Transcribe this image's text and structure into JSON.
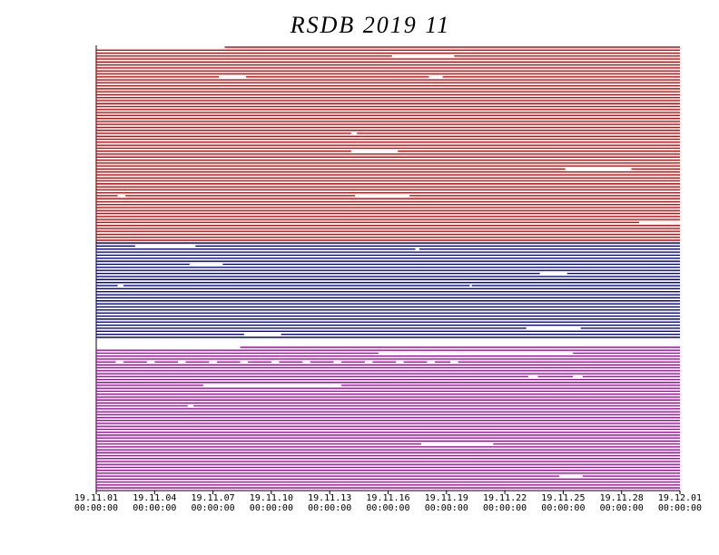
{
  "chart_data": {
    "type": "timeline",
    "title": "RSDB  2019  11",
    "xlim": [
      0,
      30
    ],
    "xticks": [
      {
        "value": 0,
        "label": "19.11.01 00:00:00"
      },
      {
        "value": 3,
        "label": "19.11.04 00:00:00"
      },
      {
        "value": 6,
        "label": "19.11.07 00:00:00"
      },
      {
        "value": 9,
        "label": "19.11.10 00:00:00"
      },
      {
        "value": 12,
        "label": "19.11.13 00:00:00"
      },
      {
        "value": 15,
        "label": "19.11.16 00:00:00"
      },
      {
        "value": 18,
        "label": "19.11.19 00:00:00"
      },
      {
        "value": 21,
        "label": "19.11.22 00:00:00"
      },
      {
        "value": 24,
        "label": "19.11.25 00:00:00"
      },
      {
        "value": 27,
        "label": "19.11.28 00:00:00"
      },
      {
        "value": 30,
        "label": "19.12.01 00:00:00"
      }
    ],
    "series": [
      {
        "color": "#e00000",
        "rows": [
          [
            [
              6.6,
              30
            ]
          ],
          [
            [
              0,
              30
            ]
          ],
          [
            [
              0,
              30
            ]
          ],
          [
            [
              0,
              15.2
            ],
            [
              18.4,
              30
            ]
          ],
          [
            [
              0,
              30
            ]
          ],
          [
            [
              0,
              30
            ]
          ],
          [
            [
              0,
              30
            ]
          ],
          [
            [
              0,
              30
            ]
          ],
          [
            [
              0,
              30
            ]
          ],
          [
            [
              0,
              30
            ]
          ],
          [
            [
              0,
              6.3
            ],
            [
              7.7,
              17.1
            ],
            [
              17.8,
              30
            ]
          ],
          [
            [
              0,
              30
            ]
          ],
          [
            [
              0,
              30
            ]
          ],
          [
            [
              0,
              30
            ]
          ],
          [
            [
              0,
              30
            ]
          ],
          [
            [
              0,
              30
            ]
          ],
          [
            [
              0,
              30
            ]
          ],
          [
            [
              0,
              30
            ]
          ],
          [
            [
              0,
              30
            ]
          ],
          [
            [
              0,
              30
            ]
          ],
          [
            [
              0,
              30
            ]
          ],
          [
            [
              0,
              30
            ]
          ],
          [
            [
              0,
              30
            ]
          ],
          [
            [
              0,
              30
            ]
          ],
          [
            [
              0,
              30
            ]
          ],
          [
            [
              0,
              30
            ]
          ],
          [
            [
              0,
              30
            ]
          ],
          [
            [
              0,
              30
            ]
          ],
          [
            [
              0,
              30
            ]
          ],
          [
            [
              0,
              13.1
            ],
            [
              13.4,
              30
            ]
          ],
          [
            [
              0,
              30
            ]
          ],
          [
            [
              0,
              30
            ]
          ],
          [
            [
              0,
              30
            ]
          ],
          [
            [
              0,
              30
            ]
          ],
          [
            [
              0,
              30
            ]
          ],
          [
            [
              0,
              13.1
            ],
            [
              15.5,
              30
            ]
          ],
          [
            [
              0,
              30
            ]
          ],
          [
            [
              0,
              30
            ]
          ],
          [
            [
              0,
              30
            ]
          ],
          [
            [
              0,
              30
            ]
          ],
          [
            [
              0,
              30
            ]
          ],
          [
            [
              0,
              24.1
            ],
            [
              27.5,
              30
            ]
          ],
          [
            [
              0,
              30
            ]
          ],
          [
            [
              0,
              30
            ]
          ],
          [
            [
              0,
              30
            ]
          ],
          [
            [
              0,
              30
            ]
          ],
          [
            [
              0,
              30
            ]
          ],
          [
            [
              0,
              30
            ]
          ],
          [
            [
              0,
              30
            ]
          ],
          [
            [
              0,
              30
            ]
          ],
          [
            [
              0,
              1.1
            ],
            [
              1.5,
              13.3
            ],
            [
              16.1,
              30
            ]
          ],
          [
            [
              0,
              30
            ]
          ],
          [
            [
              0,
              30
            ]
          ],
          [
            [
              0,
              30
            ]
          ],
          [
            [
              0,
              30
            ]
          ],
          [
            [
              0,
              30
            ]
          ],
          [
            [
              0,
              30
            ]
          ],
          [
            [
              0,
              30
            ]
          ],
          [
            [
              0,
              30
            ]
          ],
          [
            [
              0,
              27.9
            ]
          ],
          [
            [
              0,
              30
            ]
          ],
          [
            [
              0,
              30
            ]
          ],
          [
            [
              0,
              30
            ]
          ],
          [
            [
              0,
              30
            ]
          ],
          [
            [
              0,
              30
            ]
          ],
          [
            [
              0,
              30
            ]
          ]
        ]
      },
      {
        "color": "#0000b0",
        "rows": [
          [
            [
              0,
              30
            ]
          ],
          [
            [
              0,
              2
            ],
            [
              5.1,
              30
            ]
          ],
          [
            [
              0,
              16.4
            ],
            [
              16.6,
              30
            ]
          ],
          [
            [
              0,
              30
            ]
          ],
          [
            [
              0,
              30
            ]
          ],
          [
            [
              0,
              30
            ]
          ],
          [
            [
              0,
              30
            ]
          ],
          [
            [
              0,
              4.8
            ],
            [
              6.5,
              30
            ]
          ],
          [
            [
              0,
              30
            ]
          ],
          [
            [
              0,
              30
            ]
          ],
          [
            [
              0,
              22.8
            ],
            [
              24.2,
              30
            ]
          ],
          [
            [
              0,
              30
            ]
          ],
          [
            [
              0,
              30
            ]
          ],
          [
            [
              0,
              30
            ]
          ],
          [
            [
              0,
              1.1
            ],
            [
              1.4,
              19.2
            ],
            [
              19.3,
              30
            ]
          ],
          [
            [
              0,
              30
            ]
          ],
          [
            [
              0,
              30
            ]
          ],
          [
            [
              0,
              30
            ]
          ],
          [
            [
              0,
              30
            ]
          ],
          [
            [
              0,
              30
            ]
          ],
          [
            [
              0,
              30
            ]
          ],
          [
            [
              0,
              30
            ]
          ],
          [
            [
              0,
              30
            ]
          ],
          [
            [
              0,
              30
            ]
          ],
          [
            [
              0,
              30
            ]
          ],
          [
            [
              0,
              30
            ]
          ],
          [
            [
              0,
              30
            ]
          ],
          [
            [
              0,
              30
            ]
          ],
          [
            [
              0,
              22.1
            ],
            [
              24.9,
              30
            ]
          ],
          [
            [
              0,
              30
            ]
          ],
          [
            [
              0,
              7.6
            ],
            [
              9.5,
              30
            ]
          ],
          [
            [
              0,
              30
            ]
          ]
        ]
      },
      {
        "color": "#b000b0",
        "rows": [
          [
            [
              7.4,
              30
            ]
          ],
          [
            [
              0,
              30
            ]
          ],
          [
            [
              0,
              14.5
            ],
            [
              24.5,
              30
            ]
          ],
          [
            [
              0,
              30
            ]
          ],
          [
            [
              0,
              30
            ]
          ],
          [
            [
              0,
              1
            ],
            [
              1.4,
              2.6
            ],
            [
              3,
              4.2
            ],
            [
              4.6,
              5.8
            ],
            [
              6.2,
              7.4
            ],
            [
              7.8,
              9
            ],
            [
              9.4,
              10.6
            ],
            [
              11,
              12.2
            ],
            [
              12.6,
              13.8
            ],
            [
              14.2,
              15.4
            ],
            [
              15.8,
              17
            ],
            [
              17.4,
              18.2
            ],
            [
              18.6,
              30
            ]
          ],
          [
            [
              0,
              30
            ]
          ],
          [
            [
              0,
              30
            ]
          ],
          [
            [
              0,
              30
            ]
          ],
          [
            [
              0,
              30
            ]
          ],
          [
            [
              0,
              22.2
            ],
            [
              22.7,
              24.5
            ],
            [
              25,
              30
            ]
          ],
          [
            [
              0,
              30
            ]
          ],
          [
            [
              0,
              30
            ]
          ],
          [
            [
              0,
              5.5
            ],
            [
              12.6,
              30
            ]
          ],
          [
            [
              0,
              30
            ]
          ],
          [
            [
              0,
              30
            ]
          ],
          [
            [
              0,
              30
            ]
          ],
          [
            [
              0,
              30
            ]
          ],
          [
            [
              0,
              30
            ]
          ],
          [
            [
              0,
              30
            ]
          ],
          [
            [
              0,
              4.7
            ],
            [
              5,
              30
            ]
          ],
          [
            [
              0,
              30
            ]
          ],
          [
            [
              0,
              30
            ]
          ],
          [
            [
              0,
              30
            ]
          ],
          [
            [
              0,
              30
            ]
          ],
          [
            [
              0,
              30
            ]
          ],
          [
            [
              0,
              30
            ]
          ],
          [
            [
              0,
              30
            ]
          ],
          [
            [
              0,
              30
            ]
          ],
          [
            [
              0,
              30
            ]
          ],
          [
            [
              0,
              30
            ]
          ],
          [
            [
              0,
              30
            ]
          ],
          [
            [
              0,
              30
            ]
          ],
          [
            [
              0,
              16.7
            ],
            [
              20.4,
              30
            ]
          ],
          [
            [
              0,
              30
            ]
          ],
          [
            [
              0,
              30
            ]
          ],
          [
            [
              0,
              30
            ]
          ],
          [
            [
              0,
              30
            ]
          ],
          [
            [
              0,
              30
            ]
          ],
          [
            [
              0,
              30
            ]
          ],
          [
            [
              0,
              30
            ]
          ],
          [
            [
              0,
              30
            ]
          ],
          [
            [
              0,
              30
            ]
          ],
          [
            [
              0,
              30
            ]
          ],
          [
            [
              0,
              23.8
            ],
            [
              25,
              30
            ]
          ],
          [
            [
              0,
              30
            ]
          ],
          [
            [
              0,
              30
            ]
          ],
          [
            [
              0,
              30
            ]
          ],
          [
            [
              0,
              30
            ]
          ]
        ]
      }
    ]
  }
}
